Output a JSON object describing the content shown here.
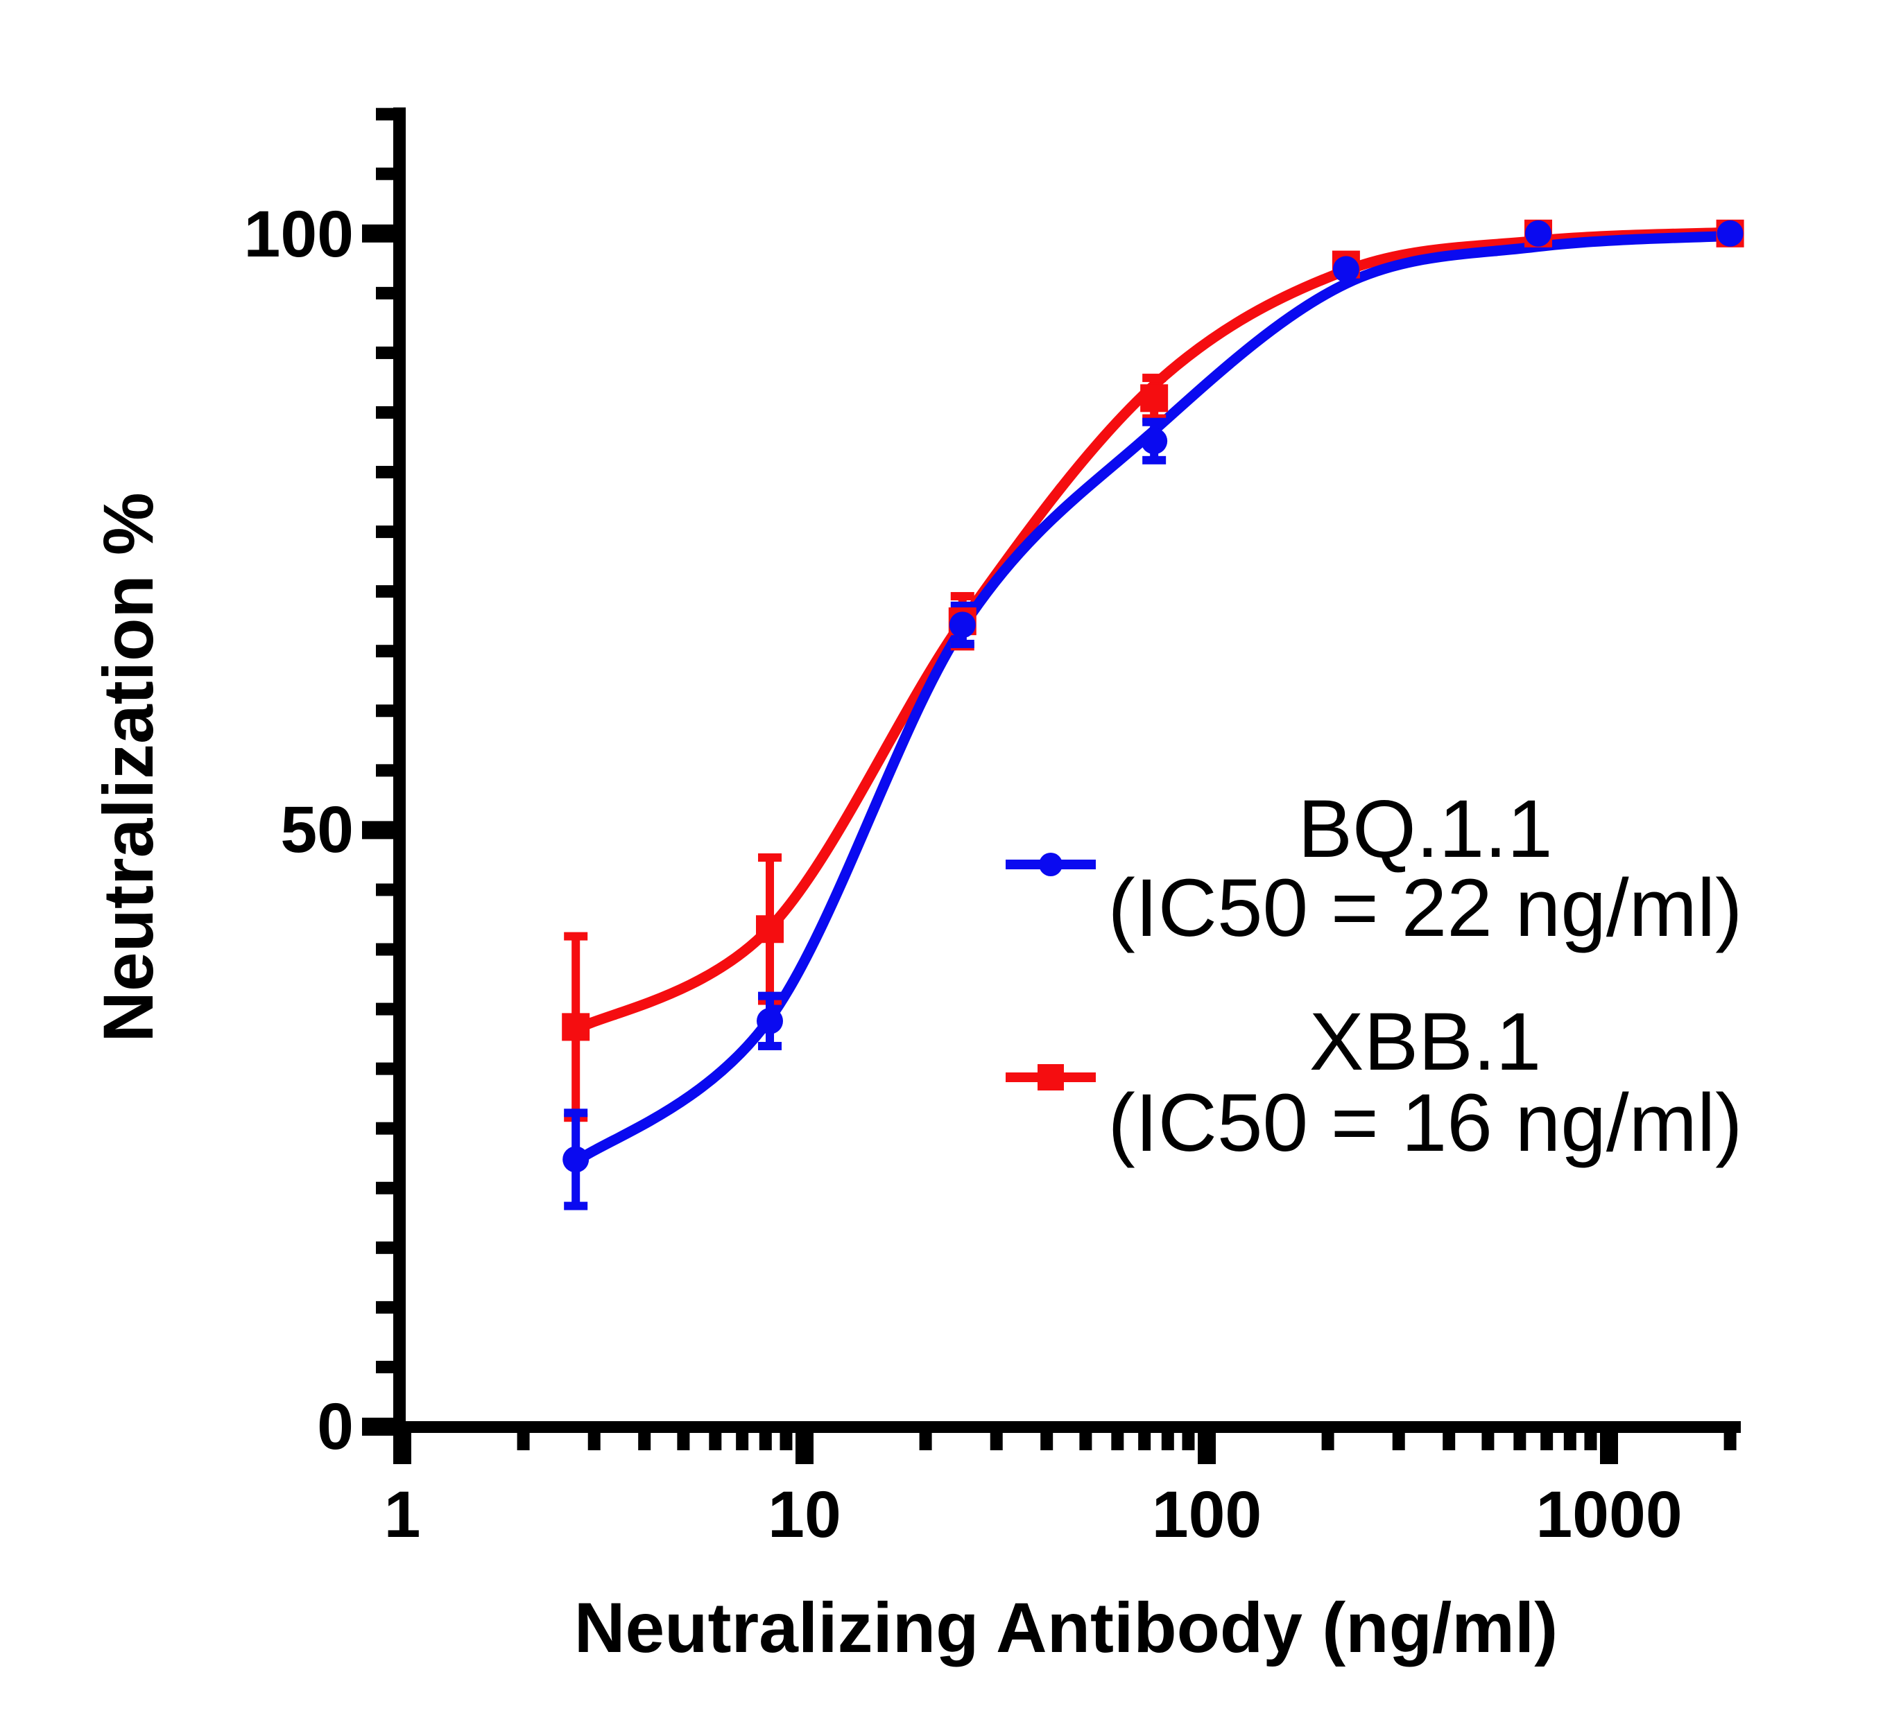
{
  "chart_data": {
    "type": "line",
    "title": "",
    "xlabel": "Neutralizing Antibody (ng/ml)",
    "ylabel": "Neutralization %",
    "x_scale": "log10",
    "xlim": [
      1,
      2100
    ],
    "ylim": [
      0,
      110
    ],
    "grid": "off",
    "legend_position": "right-middle",
    "x_major_ticks": [
      1,
      10,
      100,
      1000
    ],
    "y_major_ticks": [
      0,
      50,
      100
    ],
    "y_minor_step": 5,
    "x": [
      2.7,
      8.2,
      24.7,
      74,
      222,
      667,
      2000
    ],
    "series": [
      {
        "name": "XBB.1",
        "ic50_label": "(IC50 = 16 ng/ml)",
        "ic50_ng_ml": 16,
        "color": "#F50D10",
        "marker": "square",
        "values": [
          33.5,
          41.7,
          67.5,
          86.2,
          97.4,
          100,
          100
        ],
        "errors": [
          7.6,
          6.0,
          2.1,
          1.7,
          0,
          0,
          0
        ],
        "curve": [
          33.3,
          41.8,
          67.5,
          87.3,
          96.9,
          99.4,
          100.1
        ]
      },
      {
        "name": "BQ.1.1",
        "ic50_label": "(IC50 = 22 ng/ml)",
        "ic50_ng_ml": 22,
        "color": "#0A0AF0",
        "marker": "circle",
        "values": [
          22.4,
          34.0,
          67.2,
          82.6,
          97.0,
          100,
          100
        ],
        "errors": [
          3.9,
          2.1,
          1.6,
          1.6,
          0,
          0,
          0
        ],
        "curve": [
          22.2,
          34.2,
          67.0,
          83.5,
          95.8,
          98.9,
          99.8
        ]
      }
    ]
  },
  "axis": {
    "y_tick_labels": [
      "0",
      "50",
      "100"
    ],
    "x_tick_labels": [
      "1",
      "10",
      "100",
      "1000"
    ],
    "x_title": "Neutralizing Antibody (ng/ml)",
    "y_title": "Neutralization %"
  },
  "legend": {
    "row1_name": "BQ.1.1",
    "row1_ic50": "(IC50 = 22 ng/ml)",
    "row2_name": "XBB.1",
    "row2_ic50": "(IC50 = 16 ng/ml)"
  }
}
